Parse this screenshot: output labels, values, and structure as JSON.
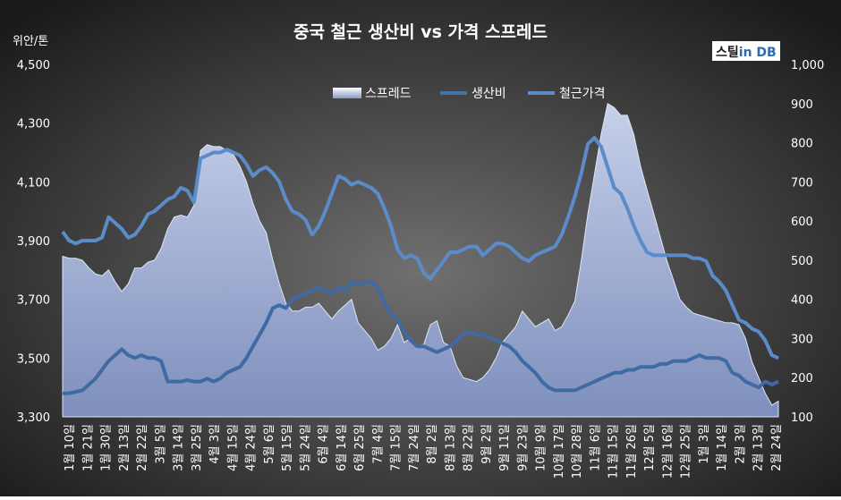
{
  "brand": {
    "part1": "스틸",
    "part2": "in",
    "part3": " DB",
    "accent": "#2b6cb0"
  },
  "chart_data": {
    "type": "line",
    "title": "중국 철근 생산비 vs 가격 스프레드",
    "ylabel_left": "위안/톤",
    "ylim_left": [
      3300,
      4500
    ],
    "yticks_left": [
      "3,300",
      "3,500",
      "3,700",
      "3,900",
      "4,100",
      "4,300",
      "4,500"
    ],
    "ylim_right": [
      100,
      1000
    ],
    "yticks_right": [
      "100",
      "200",
      "300",
      "400",
      "500",
      "600",
      "700",
      "800",
      "900",
      "1,000"
    ],
    "legend_position": "top-center",
    "grid": false,
    "x_tick_labels": [
      "1월 10일",
      "1월 21일",
      "1월 30일",
      "2월 13일",
      "2월 22일",
      "3월 5일",
      "3월 14일",
      "3월 25일",
      "4월 3일",
      "4월 15일",
      "4월 24일",
      "5월 6일",
      "5월 15일",
      "5월 24일",
      "6월 4일",
      "6월 14일",
      "6월 25일",
      "7월 4일",
      "7월 15일",
      "7월 24일",
      "8월 2일",
      "8월 13일",
      "8월 22일",
      "9월 2일",
      "9월 11일",
      "9월 23일",
      "10월 9일",
      "10월 17일",
      "10월 28일",
      "11월 6일",
      "11월 15일",
      "11월 26일",
      "12월 5일",
      "12월 16일",
      "12월 25일",
      "1월 3일",
      "1월 14일",
      "2월 3일",
      "2월 13일",
      "2월 24일"
    ],
    "series": [
      {
        "name": "스프레드",
        "axis": "right",
        "kind": "area",
        "values": [
          510,
          505,
          505,
          500,
          480,
          465,
          460,
          475,
          445,
          420,
          440,
          480,
          480,
          495,
          500,
          530,
          580,
          610,
          615,
          610,
          640,
          780,
          795,
          790,
          790,
          780,
          770,
          740,
          700,
          645,
          600,
          570,
          500,
          440,
          390,
          370,
          370,
          380,
          380,
          390,
          370,
          350,
          370,
          385,
          400,
          340,
          320,
          300,
          270,
          280,
          300,
          335,
          290,
          300,
          280,
          285,
          335,
          345,
          290,
          280,
          230,
          200,
          195,
          190,
          200,
          220,
          250,
          290,
          310,
          330,
          370,
          350,
          330,
          340,
          350,
          320,
          330,
          360,
          395,
          500,
          620,
          720,
          820,
          900,
          890,
          870,
          870,
          820,
          740,
          680,
          620,
          560,
          500,
          450,
          400,
          380,
          365,
          360,
          355,
          350,
          345,
          340,
          340,
          335,
          300,
          240,
          200,
          160,
          130,
          140
        ]
      },
      {
        "name": "생산비",
        "axis": "left",
        "kind": "line",
        "values": [
          3380,
          3380,
          3385,
          3390,
          3410,
          3430,
          3460,
          3490,
          3510,
          3530,
          3510,
          3500,
          3510,
          3500,
          3500,
          3490,
          3420,
          3420,
          3420,
          3425,
          3420,
          3420,
          3430,
          3420,
          3430,
          3450,
          3460,
          3470,
          3500,
          3540,
          3580,
          3620,
          3670,
          3680,
          3670,
          3700,
          3710,
          3720,
          3730,
          3740,
          3730,
          3720,
          3740,
          3730,
          3760,
          3750,
          3760,
          3760,
          3740,
          3690,
          3650,
          3630,
          3590,
          3560,
          3540,
          3540,
          3530,
          3520,
          3530,
          3540,
          3560,
          3580,
          3590,
          3580,
          3580,
          3570,
          3560,
          3550,
          3540,
          3520,
          3490,
          3470,
          3450,
          3420,
          3400,
          3390,
          3390,
          3390,
          3390,
          3400,
          3410,
          3420,
          3430,
          3440,
          3450,
          3450,
          3460,
          3460,
          3470,
          3470,
          3470,
          3480,
          3480,
          3490,
          3490,
          3490,
          3500,
          3510,
          3500,
          3500,
          3500,
          3490,
          3450,
          3440,
          3420,
          3410,
          3400,
          3420,
          3410,
          3420
        ]
      },
      {
        "name": "철근가격",
        "axis": "left",
        "kind": "line",
        "values": [
          3930,
          3900,
          3890,
          3900,
          3900,
          3900,
          3910,
          3980,
          3960,
          3940,
          3910,
          3920,
          3950,
          3990,
          4000,
          4020,
          4040,
          4050,
          4080,
          4070,
          4030,
          4180,
          4190,
          4200,
          4200,
          4210,
          4200,
          4190,
          4160,
          4120,
          4140,
          4150,
          4130,
          4100,
          4040,
          4000,
          3990,
          3970,
          3920,
          3950,
          4000,
          4060,
          4120,
          4110,
          4090,
          4100,
          4090,
          4080,
          4060,
          4010,
          3950,
          3870,
          3840,
          3850,
          3840,
          3790,
          3770,
          3800,
          3830,
          3860,
          3860,
          3870,
          3880,
          3880,
          3850,
          3870,
          3890,
          3890,
          3880,
          3860,
          3840,
          3830,
          3850,
          3860,
          3870,
          3880,
          3920,
          3980,
          4050,
          4130,
          4230,
          4250,
          4220,
          4150,
          4080,
          4060,
          4010,
          3950,
          3900,
          3860,
          3850,
          3850,
          3850,
          3850,
          3850,
          3850,
          3840,
          3840,
          3830,
          3780,
          3760,
          3730,
          3680,
          3630,
          3620,
          3600,
          3590,
          3560,
          3510,
          3500
        ]
      }
    ]
  }
}
